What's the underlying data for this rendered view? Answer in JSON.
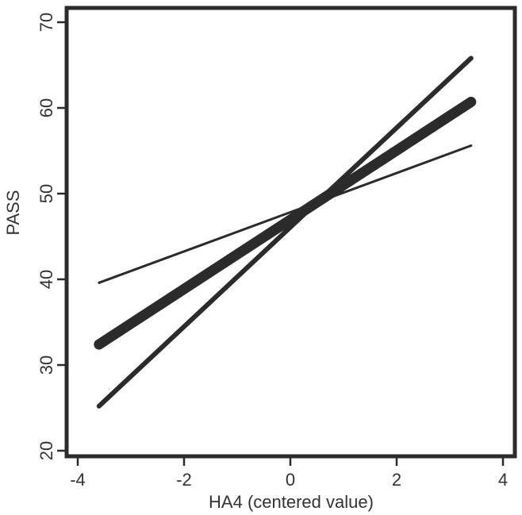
{
  "chart_data": {
    "type": "line",
    "title": "",
    "xlabel": "HA4 (centered value)",
    "ylabel": "PASS",
    "xlim": [
      -4.0,
      4.0
    ],
    "ylim": [
      20,
      70
    ],
    "x_ticks": [
      -4,
      -2,
      0,
      2,
      4
    ],
    "y_ticks": [
      20,
      30,
      40,
      50,
      60,
      70
    ],
    "grid": false,
    "legend": "none",
    "series": [
      {
        "x": [
          -3.6,
          3.4
        ],
        "y": [
          39.6,
          55.6
        ],
        "line_width": "thin"
      },
      {
        "x": [
          -3.6,
          3.4
        ],
        "y": [
          32.4,
          60.7
        ],
        "line_width": "thick"
      },
      {
        "x": [
          -3.6,
          3.4
        ],
        "y": [
          25.2,
          65.8
        ],
        "line_width": "medium"
      }
    ],
    "colors": {
      "line": "#2b2b2b",
      "frame": "#2b2b2b",
      "text": "#333333"
    }
  }
}
